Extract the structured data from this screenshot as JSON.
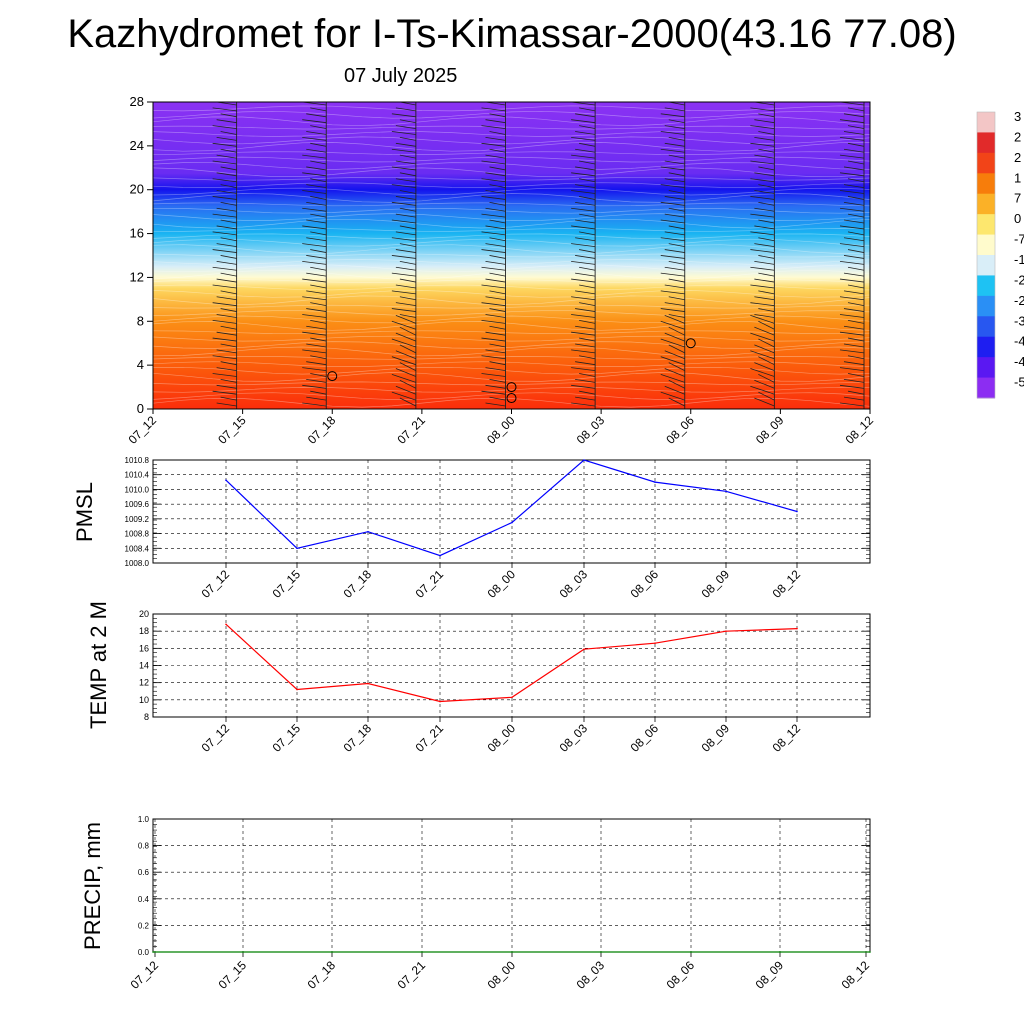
{
  "header": {
    "title": "Kazhydromet for I-Ts-Kimassar-2000(43.16 77.08)",
    "subtitle": "07 July 2025"
  },
  "chart_data": [
    {
      "type": "heatmap",
      "title": "",
      "x_ticks": [
        "07_12",
        "07_15",
        "07_18",
        "07_21",
        "08_00",
        "08_03",
        "08_06",
        "08_09",
        "08_12"
      ],
      "y_ticks": [
        0,
        4,
        8,
        12,
        16,
        20,
        24,
        28
      ],
      "ylim": [
        0,
        28
      ],
      "colorbar_labels": [
        "3",
        "2",
        "2",
        "1",
        "7",
        "0",
        "-7",
        "-1",
        "-2",
        "-2",
        "-3",
        "-4",
        "-4",
        "-5"
      ],
      "colorbar_colors": [
        "#f3c6c6",
        "#e12a2a",
        "#f24418",
        "#f77d0b",
        "#fbb127",
        "#fde76e",
        "#fffbcc",
        "#d9eef8",
        "#1ec2f3",
        "#2a8ff5",
        "#2857f0",
        "#1e1ef1",
        "#5a18f2",
        "#8c2df2"
      ],
      "profile": [
        {
          "level": 0,
          "color": "#fb2d0b"
        },
        {
          "level": 4,
          "color": "#fb5d0b"
        },
        {
          "level": 8,
          "color": "#fb8f15"
        },
        {
          "level": 11,
          "color": "#fdd760"
        },
        {
          "level": 12,
          "color": "#fffbd2"
        },
        {
          "level": 13,
          "color": "#d8eef8"
        },
        {
          "level": 16,
          "color": "#19b4f2"
        },
        {
          "level": 18.5,
          "color": "#2a6cf2"
        },
        {
          "level": 20,
          "color": "#1313ee"
        },
        {
          "level": 21.5,
          "color": "#6a2cf2"
        },
        {
          "level": 28,
          "color": "#8b32f3"
        }
      ],
      "markers": [
        {
          "x": "07_18",
          "level": 3
        },
        {
          "x": "08_00",
          "level": 2
        },
        {
          "x": "08_00",
          "level": 1
        },
        {
          "x": "08_06",
          "level": 6
        }
      ]
    },
    {
      "type": "line",
      "ylabel": "PMSL",
      "x": [
        "07_12",
        "07_15",
        "07_18",
        "07_21",
        "08_00",
        "08_03",
        "08_06",
        "08_09",
        "08_12"
      ],
      "ylim": [
        1008.0,
        1010.8
      ],
      "y_ticks": [
        "1008.0",
        "1008.4",
        "1008.8",
        "1009.2",
        "1009.6",
        "1010.0",
        "1010.4",
        "1010.8"
      ],
      "grid": true,
      "series": [
        {
          "values": [
            1010.25,
            1008.4,
            1008.85,
            1008.2,
            1009.1,
            1010.8,
            1010.2,
            1009.95,
            1009.4
          ],
          "color": "#0000ff"
        }
      ]
    },
    {
      "type": "line",
      "ylabel": "TEMP at 2 M",
      "x": [
        "07_12",
        "07_15",
        "07_18",
        "07_21",
        "08_00",
        "08_03",
        "08_06",
        "08_09",
        "08_12"
      ],
      "ylim": [
        8,
        20
      ],
      "y_ticks": [
        "8",
        "10",
        "12",
        "14",
        "16",
        "18",
        "20"
      ],
      "grid": true,
      "series": [
        {
          "values": [
            18.8,
            11.2,
            11.9,
            9.8,
            10.3,
            15.9,
            16.6,
            18.0,
            18.3
          ],
          "color": "#ff0000"
        }
      ]
    },
    {
      "type": "line",
      "ylabel": "PRECIP, mm",
      "x": [
        "07_12",
        "07_15",
        "07_18",
        "07_21",
        "08_00",
        "08_03",
        "08_06",
        "08_09",
        "08_12"
      ],
      "ylim": [
        0.0,
        1.0
      ],
      "y_ticks": [
        "0.0",
        "0.2",
        "0.4",
        "0.6",
        "0.8",
        "1.0"
      ],
      "grid": true,
      "series": [
        {
          "values": [
            0,
            0,
            0,
            0,
            0,
            0,
            0,
            0,
            0
          ],
          "color": "#008000"
        }
      ]
    }
  ]
}
